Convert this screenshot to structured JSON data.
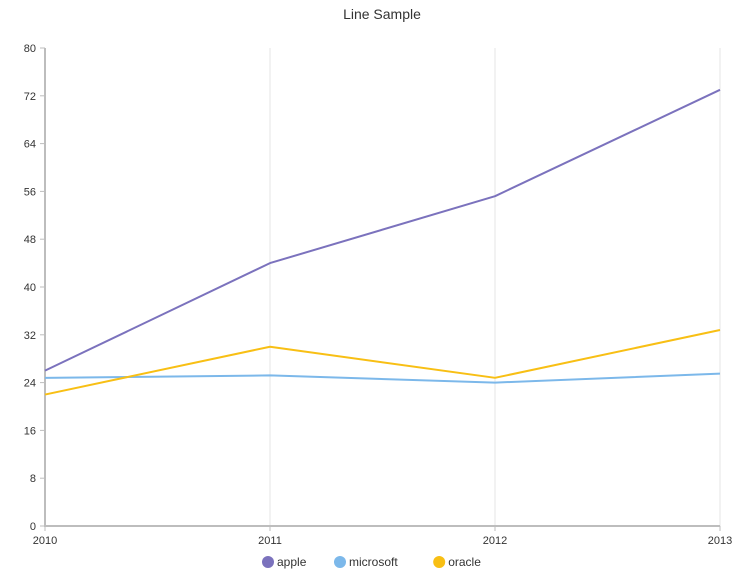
{
  "chart_data": {
    "type": "line",
    "title": "Line Sample",
    "x": [
      "2010",
      "2011",
      "2012",
      "2013"
    ],
    "ylim": [
      0,
      80
    ],
    "yticks": [
      "0",
      "8",
      "16",
      "24",
      "32",
      "40",
      "48",
      "56",
      "64",
      "72",
      "80"
    ],
    "grid": {
      "vertical": true,
      "horizontal": false
    },
    "legend_position": "bottom",
    "series": [
      {
        "name": "apple",
        "color": "#7b72bd",
        "values": [
          26,
          44,
          55.2,
          73
        ]
      },
      {
        "name": "microsoft",
        "color": "#7cb8ea",
        "values": [
          24.8,
          25.2,
          24,
          25.5
        ]
      },
      {
        "name": "oracle",
        "color": "#f8bf14",
        "values": [
          22,
          30,
          24.8,
          32.8
        ]
      }
    ]
  }
}
